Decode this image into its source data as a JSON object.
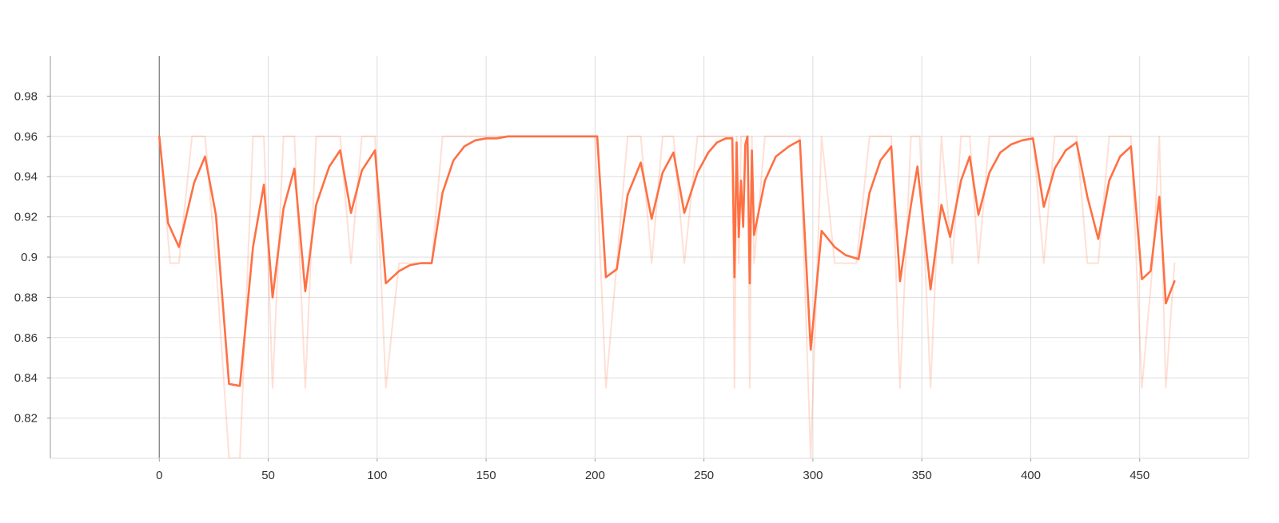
{
  "chart_data": {
    "type": "line",
    "title": "",
    "xlabel": "",
    "ylabel": "",
    "xlim": [
      -50,
      500
    ],
    "ylim": [
      0.8,
      1.0
    ],
    "x_ticks": [
      0,
      50,
      100,
      150,
      200,
      250,
      300,
      350,
      400,
      450
    ],
    "x_tick_labels": [
      "0",
      "50",
      "100",
      "150",
      "200",
      "250",
      "300",
      "350",
      "400",
      "450"
    ],
    "y_ticks": [
      0.82,
      0.84,
      0.86,
      0.88,
      0.9,
      0.92,
      0.94,
      0.96,
      0.98
    ],
    "y_tick_labels": [
      "0.82",
      "0.84",
      "0.86",
      "0.88",
      "0.9",
      "0.92",
      "0.94",
      "0.96",
      "0.98"
    ],
    "grid": true,
    "legend": "none",
    "colors": {
      "smoothed": "#ff7043",
      "raw": "#ff7043",
      "raw_opacity": 0.22,
      "grid": "#dddddd",
      "axis": "#999999"
    },
    "series": [
      {
        "role": "raw",
        "x": [
          0,
          5,
          9,
          15,
          21,
          26,
          32,
          37,
          43,
          48,
          52,
          57,
          62,
          67,
          72,
          78,
          83,
          88,
          93,
          99,
          104,
          110,
          115,
          120,
          125,
          130,
          135,
          140,
          145,
          150,
          155,
          160,
          165,
          170,
          175,
          180,
          185,
          190,
          195,
          200,
          205,
          210,
          215,
          221,
          226,
          231,
          236,
          241,
          247,
          252,
          256,
          260,
          263,
          264,
          265,
          266,
          267,
          268,
          269,
          270,
          271,
          272,
          273,
          278,
          283,
          289,
          294,
          299,
          304,
          310,
          315,
          320,
          326,
          331,
          336,
          340,
          345,
          349,
          354,
          359,
          364,
          368,
          372,
          376,
          381,
          386,
          391,
          396,
          401,
          406,
          411,
          416,
          421,
          426,
          431,
          436,
          441,
          446,
          451,
          456,
          459,
          462,
          466
        ],
        "y": [
          0.96,
          0.897,
          0.897,
          0.96,
          0.96,
          0.897,
          0.8,
          0.8,
          0.96,
          0.96,
          0.835,
          0.96,
          0.96,
          0.835,
          0.96,
          0.96,
          0.96,
          0.897,
          0.96,
          0.96,
          0.835,
          0.897,
          0.897,
          0.897,
          0.897,
          0.96,
          0.96,
          0.96,
          0.96,
          0.96,
          0.96,
          0.96,
          0.96,
          0.96,
          0.96,
          0.96,
          0.96,
          0.96,
          0.96,
          0.96,
          0.835,
          0.897,
          0.96,
          0.96,
          0.897,
          0.96,
          0.96,
          0.897,
          0.96,
          0.96,
          0.96,
          0.96,
          0.96,
          0.835,
          0.96,
          0.897,
          0.96,
          0.96,
          0.96,
          0.96,
          0.835,
          0.96,
          0.897,
          0.96,
          0.96,
          0.96,
          0.96,
          0.8,
          0.96,
          0.897,
          0.897,
          0.897,
          0.96,
          0.96,
          0.96,
          0.835,
          0.96,
          0.96,
          0.835,
          0.96,
          0.897,
          0.96,
          0.96,
          0.897,
          0.96,
          0.96,
          0.96,
          0.96,
          0.96,
          0.897,
          0.96,
          0.96,
          0.96,
          0.897,
          0.897,
          0.96,
          0.96,
          0.96,
          0.835,
          0.897,
          0.96,
          0.835,
          0.897
        ]
      },
      {
        "role": "smoothed",
        "x": [
          0,
          4,
          9,
          16,
          21,
          26,
          32,
          37,
          43,
          48,
          52,
          57,
          62,
          67,
          72,
          78,
          83,
          88,
          93,
          99,
          104,
          110,
          115,
          120,
          125,
          130,
          135,
          140,
          145,
          150,
          155,
          160,
          165,
          170,
          175,
          180,
          185,
          190,
          195,
          201,
          205,
          210,
          215,
          221,
          226,
          231,
          236,
          241,
          247,
          252,
          256,
          260,
          263,
          264,
          265,
          266,
          267,
          268,
          269,
          270,
          271,
          272,
          273,
          278,
          283,
          289,
          294,
          299,
          304,
          310,
          315,
          321,
          326,
          331,
          336,
          340,
          345,
          348,
          354,
          359,
          363,
          368,
          372,
          376,
          381,
          386,
          391,
          396,
          401,
          406,
          411,
          416,
          421,
          426,
          431,
          436,
          441,
          446,
          451,
          455,
          459,
          462,
          466
        ],
        "y": [
          0.96,
          0.917,
          0.905,
          0.937,
          0.95,
          0.921,
          0.837,
          0.836,
          0.905,
          0.936,
          0.88,
          0.924,
          0.944,
          0.883,
          0.926,
          0.945,
          0.953,
          0.922,
          0.943,
          0.953,
          0.887,
          0.893,
          0.896,
          0.897,
          0.897,
          0.932,
          0.948,
          0.955,
          0.958,
          0.959,
          0.959,
          0.96,
          0.96,
          0.96,
          0.96,
          0.96,
          0.96,
          0.96,
          0.96,
          0.96,
          0.89,
          0.894,
          0.931,
          0.947,
          0.919,
          0.942,
          0.952,
          0.922,
          0.942,
          0.952,
          0.957,
          0.959,
          0.959,
          0.89,
          0.957,
          0.91,
          0.938,
          0.915,
          0.956,
          0.96,
          0.887,
          0.953,
          0.911,
          0.938,
          0.95,
          0.955,
          0.958,
          0.854,
          0.913,
          0.905,
          0.901,
          0.899,
          0.932,
          0.948,
          0.955,
          0.888,
          0.926,
          0.945,
          0.884,
          0.926,
          0.91,
          0.938,
          0.95,
          0.921,
          0.942,
          0.952,
          0.956,
          0.958,
          0.959,
          0.925,
          0.944,
          0.953,
          0.957,
          0.93,
          0.909,
          0.938,
          0.95,
          0.955,
          0.889,
          0.893,
          0.93,
          0.877,
          0.888
        ]
      }
    ]
  }
}
